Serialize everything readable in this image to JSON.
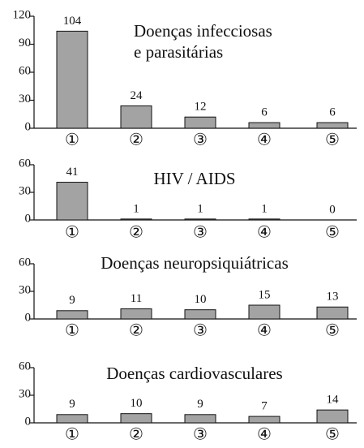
{
  "chart_data": [
    {
      "type": "bar",
      "title": [
        "Doenças infecciosas",
        "e parasitárias"
      ],
      "categories": [
        "①",
        "②",
        "③",
        "④",
        "⑤"
      ],
      "values": [
        104,
        24,
        12,
        6,
        6
      ],
      "color": "#a3a3a3",
      "ylim": [
        0,
        120
      ],
      "yticks": [
        0,
        30,
        60,
        90,
        120
      ]
    },
    {
      "type": "bar",
      "title": [
        "HIV / AIDS"
      ],
      "categories": [
        "①",
        "②",
        "③",
        "④",
        "⑤"
      ],
      "values": [
        41,
        1,
        1,
        1,
        0
      ],
      "color": "#a3a3a3",
      "ylim": [
        0,
        60
      ],
      "yticks": [
        0,
        30,
        60
      ]
    },
    {
      "type": "bar",
      "title": [
        "Doenças neuropsiquiátricas"
      ],
      "categories": [
        "①",
        "②",
        "③",
        "④",
        "⑤"
      ],
      "values": [
        9,
        11,
        10,
        15,
        13
      ],
      "color": "#a3a3a3",
      "ylim": [
        0,
        60
      ],
      "yticks": [
        0,
        30,
        60
      ]
    },
    {
      "type": "bar",
      "title": [
        "Doenças cardiovasculares"
      ],
      "categories": [
        "①",
        "②",
        "③",
        "④",
        "⑤"
      ],
      "values": [
        9,
        10,
        9,
        7,
        14
      ],
      "color": "#a3a3a3",
      "ylim": [
        0,
        60
      ],
      "yticks": [
        0,
        30,
        60
      ]
    }
  ]
}
